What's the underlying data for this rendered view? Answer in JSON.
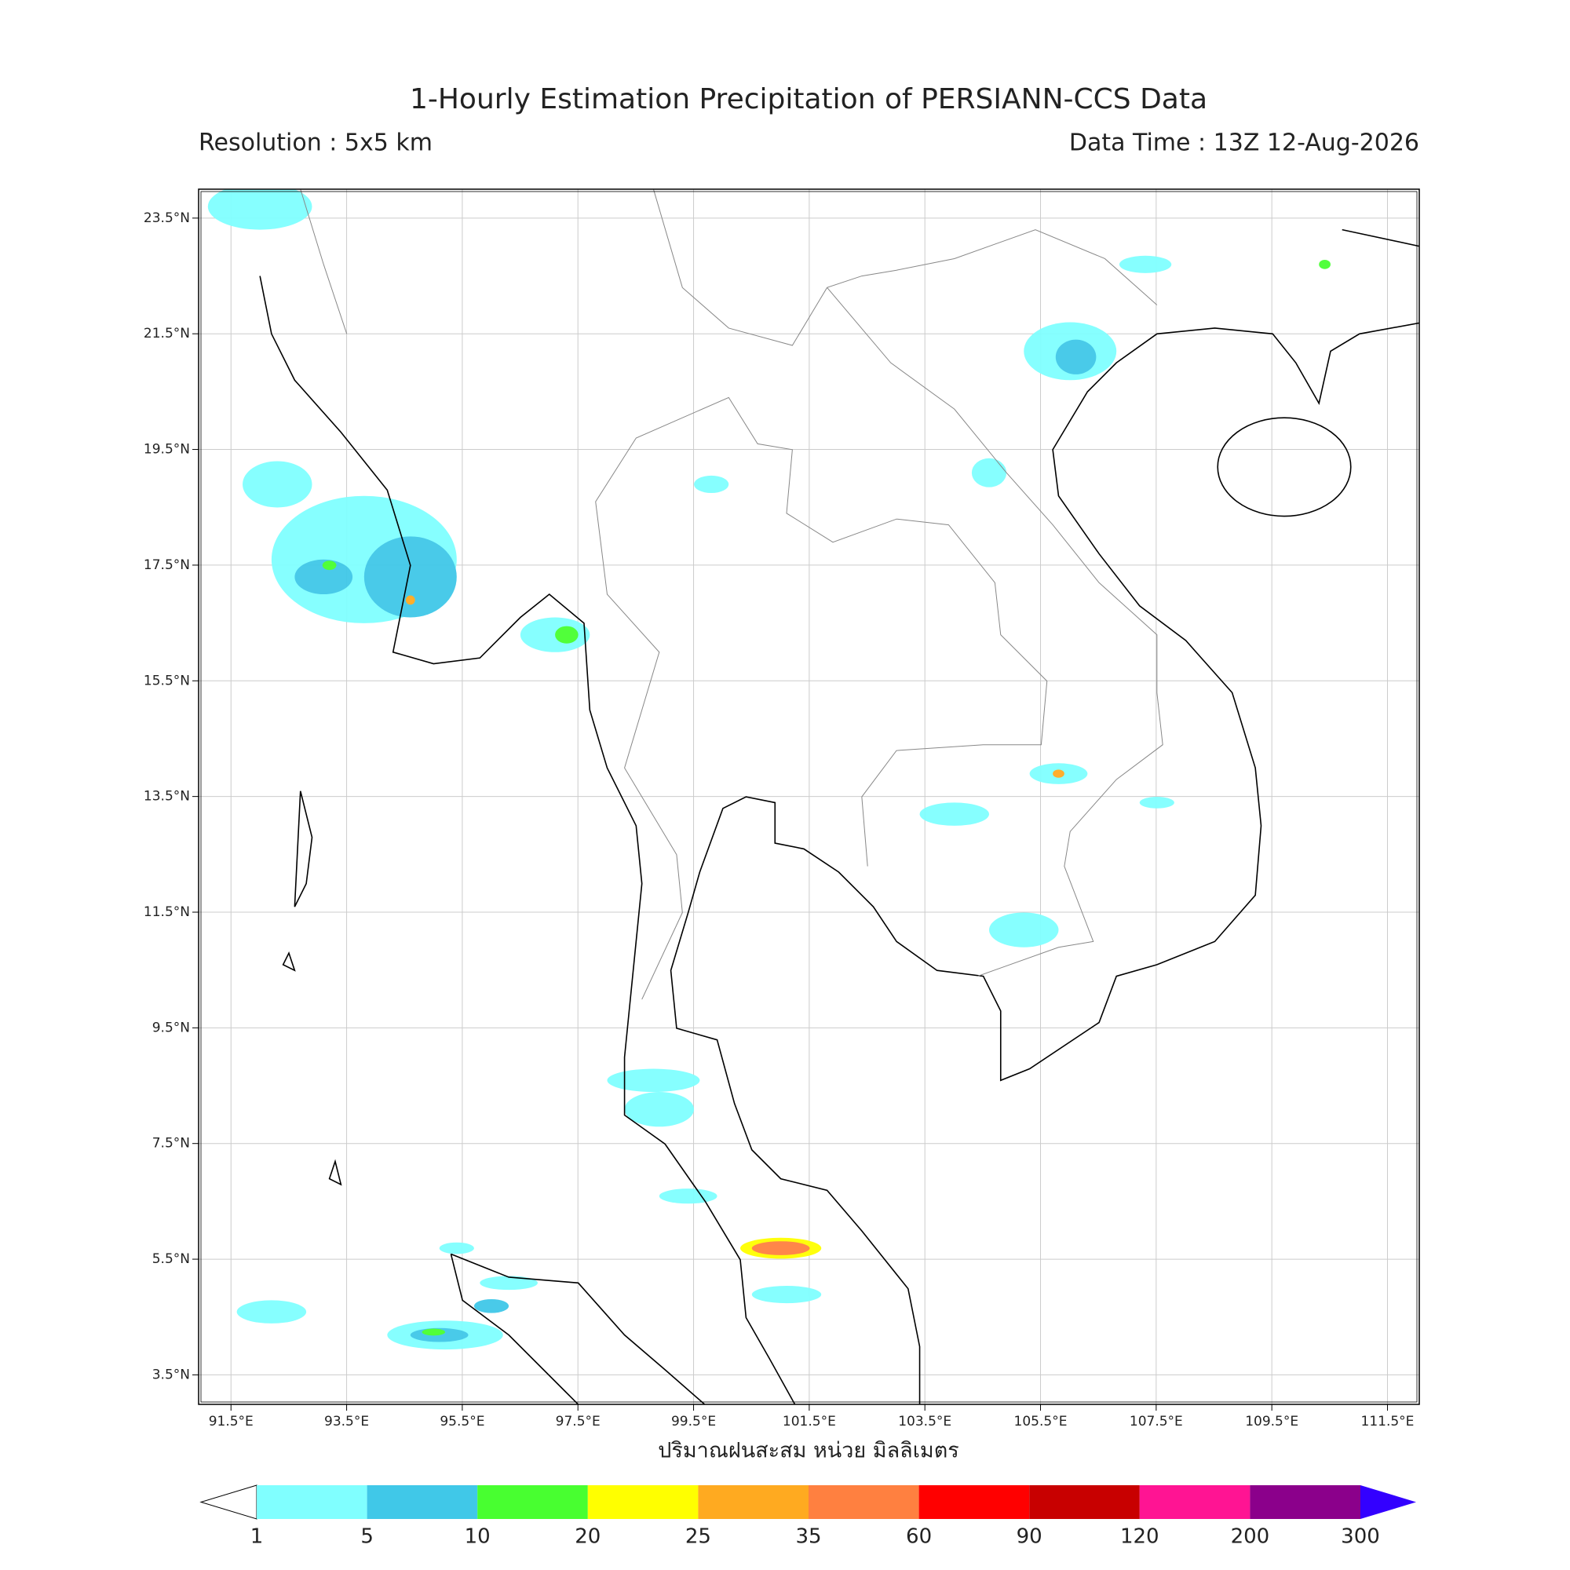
{
  "title": "1-Hourly Estimation Precipitation of PERSIANN-CCS Data",
  "subtitle_left": "Resolution : 5x5 km",
  "subtitle_right": "Data Time : 13Z 12-Aug-2026",
  "map": {
    "lonlim": [
      90.94,
      112.05
    ],
    "latlim": [
      2.99,
      24.0
    ],
    "xlabel": "ปริมาณฝนสะสม หน่วย มิลลิเมตร",
    "lonticks": [
      {
        "value": 91.5,
        "label": "91.5°E"
      },
      {
        "value": 93.5,
        "label": "93.5°E"
      },
      {
        "value": 95.5,
        "label": "95.5°E"
      },
      {
        "value": 97.5,
        "label": "97.5°E"
      },
      {
        "value": 99.5,
        "label": "99.5°E"
      },
      {
        "value": 101.5,
        "label": "101.5°E"
      },
      {
        "value": 103.5,
        "label": "103.5°E"
      },
      {
        "value": 105.5,
        "label": "105.5°E"
      },
      {
        "value": 107.5,
        "label": "107.5°E"
      },
      {
        "value": 109.5,
        "label": "109.5°E"
      },
      {
        "value": 111.5,
        "label": "111.5°E"
      }
    ],
    "latticks": [
      {
        "value": 3.5,
        "label": "3.5°N"
      },
      {
        "value": 5.5,
        "label": "5.5°N"
      },
      {
        "value": 7.5,
        "label": "7.5°N"
      },
      {
        "value": 9.5,
        "label": "9.5°N"
      },
      {
        "value": 11.5,
        "label": "11.5°N"
      },
      {
        "value": 13.5,
        "label": "13.5°N"
      },
      {
        "value": 15.5,
        "label": "15.5°N"
      },
      {
        "value": 17.5,
        "label": "17.5°N"
      },
      {
        "value": 19.5,
        "label": "19.5°N"
      },
      {
        "value": 21.5,
        "label": "21.5°N"
      },
      {
        "value": 23.5,
        "label": "23.5°N"
      }
    ],
    "grid": true
  },
  "colorbar": {
    "levels": [
      1,
      5,
      10,
      20,
      25,
      35,
      60,
      90,
      120,
      200,
      300
    ],
    "colors": [
      "#80ffff",
      "#40c8e8",
      "#48ff30",
      "#ffff00",
      "#ffaa20",
      "#ff8040",
      "#ff0000",
      "#c80000",
      "#ff1493",
      "#8b008b"
    ],
    "under_color": "#ffffff",
    "over_color": "#3300ff"
  }
}
